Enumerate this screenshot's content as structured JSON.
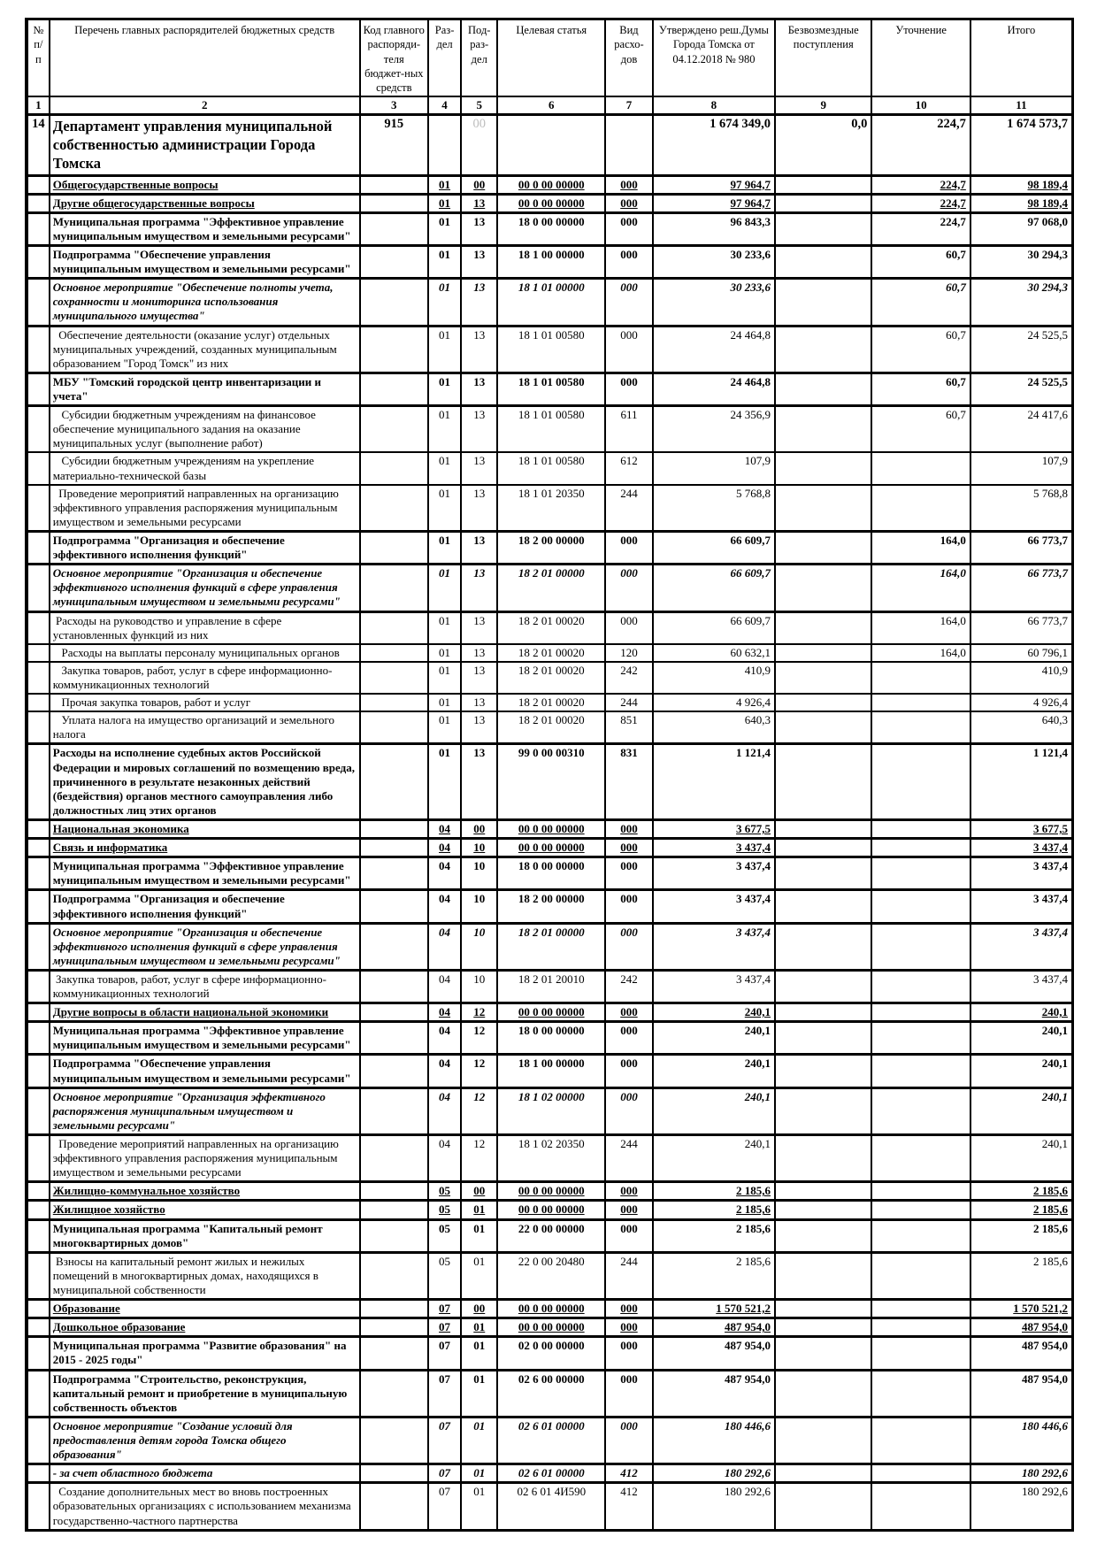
{
  "colors": {
    "accent_red": "#d40000",
    "accent_blue": "#0000cd",
    "ghost_gray": "#bdbdbd"
  },
  "header": {
    "columns": [
      {
        "label": "№ п/п",
        "num": "1"
      },
      {
        "label": "Перечень главных распорядителей бюджетных средств",
        "num": "2"
      },
      {
        "label": "Код главного распоряди-теля бюджет-ных средств",
        "num": "3"
      },
      {
        "label": "Раз-дел",
        "num": "4"
      },
      {
        "label": "Под-раз-дел",
        "num": "5"
      },
      {
        "label": "Целевая статья",
        "num": "6"
      },
      {
        "label": "Вид расхо-дов",
        "num": "7"
      },
      {
        "label": "Утверждено реш.Думы Города Томска от 04.12.2018 № 980",
        "num": "8"
      },
      {
        "label": "Безвозмездные поступления",
        "num": "9"
      },
      {
        "label": "Уточнение",
        "num": "10"
      },
      {
        "label": "Итого",
        "num": "11"
      }
    ]
  },
  "rows": [
    {
      "style": "red",
      "num": "14",
      "name": "Департамент управления муниципальной собственностью администрации Города Томска",
      "code": "915",
      "razdel": "",
      "podrazdel": "",
      "ghost": "00",
      "target": "",
      "vid": "",
      "approved": "1 674 349,0",
      "gratuitous": "0,0",
      "refinement": "224,7",
      "total": "1 674 573,7"
    },
    {
      "style": "blue",
      "num": "",
      "name": "Общегосударственные вопросы",
      "code": "",
      "razdel": "01",
      "podrazdel": "00",
      "ghost": "",
      "target": "00 0 00 00000",
      "vid": "000",
      "approved": "97 964,7",
      "gratuitous": "",
      "refinement": "224,7",
      "total": "98 189,4"
    },
    {
      "style": "blue",
      "num": "",
      "name": "Другие общегосударственные вопросы",
      "code": "",
      "razdel": "01",
      "podrazdel": "13",
      "ghost": "",
      "target": "00 0 00 00000",
      "vid": "000",
      "approved": "97 964,7",
      "gratuitous": "",
      "refinement": "224,7",
      "total": "98 189,4"
    },
    {
      "style": "bold",
      "num": "",
      "name": "Муниципальная программа \"Эффективное управление муниципальным имуществом и земельными ресурсами\"",
      "code": "",
      "razdel": "01",
      "podrazdel": "13",
      "ghost": "",
      "target": "18 0 00 00000",
      "vid": "000",
      "approved": "96 843,3",
      "gratuitous": "",
      "refinement": "224,7",
      "total": "97 068,0"
    },
    {
      "style": "bold",
      "num": "",
      "name": "Подпрограмма \"Обеспечение управления муниципальным имуществом и земельными ресурсами\"",
      "code": "",
      "razdel": "01",
      "podrazdel": "13",
      "ghost": "",
      "target": "18 1 00 00000",
      "vid": "000",
      "approved": "30 233,6",
      "gratuitous": "",
      "refinement": "60,7",
      "total": "30 294,3"
    },
    {
      "style": "bi",
      "num": "",
      "name": "Основное мероприятие \"Обеспечение полноты учета, сохранности и мониторинга использования муниципального имущества\"",
      "code": "",
      "razdel": "01",
      "podrazdel": "13",
      "ghost": "",
      "target": "18 1 01 00000",
      "vid": "000",
      "approved": "30 233,6",
      "gratuitous": "",
      "refinement": "60,7",
      "total": "30 294,3"
    },
    {
      "style": "normal",
      "num": "",
      "name": "  Обеспечение деятельности (оказание услуг) отдельных муниципальных учреждений, созданных муниципальным образованием \"Город Томск\" из них",
      "code": "",
      "razdel": "01",
      "podrazdel": "13",
      "ghost": "",
      "target": "18 1 01 00580",
      "vid": "000",
      "approved": "24 464,8",
      "gratuitous": "",
      "refinement": "60,7",
      "total": "24 525,5"
    },
    {
      "style": "bold",
      "num": "",
      "name": "МБУ \"Томский городской центр инвентаризации и учета\"",
      "code": "",
      "razdel": "01",
      "podrazdel": "13",
      "ghost": "",
      "target": "18 1 01 00580",
      "vid": "000",
      "approved": "24 464,8",
      "gratuitous": "",
      "refinement": "60,7",
      "total": "24 525,5"
    },
    {
      "style": "normal",
      "num": "",
      "name": "   Субсидии бюджетным учреждениям на финансовое обеспечение муниципального задания на оказание муниципальных услуг (выполнение работ)",
      "code": "",
      "razdel": "01",
      "podrazdel": "13",
      "ghost": "",
      "target": "18 1 01 00580",
      "vid": "611",
      "approved": "24 356,9",
      "gratuitous": "",
      "refinement": "60,7",
      "total": "24 417,6"
    },
    {
      "style": "normal",
      "num": "",
      "name": "   Субсидии бюджетным учреждениям на укрепление материально-технической базы",
      "code": "",
      "razdel": "01",
      "podrazdel": "13",
      "ghost": "",
      "target": "18 1 01 00580",
      "vid": "612",
      "approved": "107,9",
      "gratuitous": "",
      "refinement": "",
      "total": "107,9"
    },
    {
      "style": "normal",
      "num": "",
      "name": "  Проведение мероприятий направленных на организацию эффективного управления распоряжения муниципальным имуществом и земельными ресурсами",
      "code": "",
      "razdel": "01",
      "podrazdel": "13",
      "ghost": "",
      "target": "18 1 01 20350",
      "vid": "244",
      "approved": "5 768,8",
      "gratuitous": "",
      "refinement": "",
      "total": "5 768,8"
    },
    {
      "style": "bold",
      "num": "",
      "name": "Подпрограмма \"Организация и обеспечение эффективного исполнения функций\"",
      "code": "",
      "razdel": "01",
      "podrazdel": "13",
      "ghost": "",
      "target": "18 2 00 00000",
      "vid": "000",
      "approved": "66 609,7",
      "gratuitous": "",
      "refinement": "164,0",
      "total": "66 773,7"
    },
    {
      "style": "bi",
      "num": "",
      "name": "Основное мероприятие \"Организация и обеспечение эффективного исполнения функций в сфере управления муниципальным имуществом и земельными ресурсами\"",
      "code": "",
      "razdel": "01",
      "podrazdel": "13",
      "ghost": "",
      "target": "18 2 01 00000",
      "vid": "000",
      "approved": "66 609,7",
      "gratuitous": "",
      "refinement": "164,0",
      "total": "66 773,7"
    },
    {
      "style": "normal",
      "num": "",
      "name": " Расходы на руководство и управление в сфере установленных функций из них",
      "code": "",
      "razdel": "01",
      "podrazdel": "13",
      "ghost": "",
      "target": "18 2 01 00020",
      "vid": "000",
      "approved": "66 609,7",
      "gratuitous": "",
      "refinement": "164,0",
      "total": "66 773,7"
    },
    {
      "style": "normal",
      "num": "",
      "name": "   Расходы на выплаты персоналу муниципальных органов",
      "code": "",
      "razdel": "01",
      "podrazdel": "13",
      "ghost": "",
      "target": "18 2 01 00020",
      "vid": "120",
      "approved": "60 632,1",
      "gratuitous": "",
      "refinement": "164,0",
      "total": "60 796,1"
    },
    {
      "style": "normal",
      "num": "",
      "name": "   Закупка товаров, работ, услуг в сфере информационно-коммуникационных технологий",
      "code": "",
      "razdel": "01",
      "podrazdel": "13",
      "ghost": "",
      "target": "18 2 01 00020",
      "vid": "242",
      "approved": "410,9",
      "gratuitous": "",
      "refinement": "",
      "total": "410,9"
    },
    {
      "style": "normal",
      "num": "",
      "name": "   Прочая закупка товаров, работ и услуг",
      "code": "",
      "razdel": "01",
      "podrazdel": "13",
      "ghost": "",
      "target": "18 2 01 00020",
      "vid": "244",
      "approved": "4 926,4",
      "gratuitous": "",
      "refinement": "",
      "total": "4 926,4"
    },
    {
      "style": "normal",
      "num": "",
      "name": "   Уплата налога на имущество организаций и земельного налога",
      "code": "",
      "razdel": "01",
      "podrazdel": "13",
      "ghost": "",
      "target": "18 2 01 00020",
      "vid": "851",
      "approved": "640,3",
      "gratuitous": "",
      "refinement": "",
      "total": "640,3"
    },
    {
      "style": "bold",
      "num": "",
      "name": "Расходы на исполнение судебных актов Российской Федерации и мировых соглашений по возмещению вреда, причиненного в результате незаконных действий (бездействия) органов местного самоуправления либо должностных лиц этих органов",
      "code": "",
      "razdel": "01",
      "podrazdel": "13",
      "ghost": "",
      "target": "99 0 00 00310",
      "vid": "831",
      "approved": "1 121,4",
      "gratuitous": "",
      "refinement": "",
      "total": "1 121,4"
    },
    {
      "style": "blue",
      "num": "",
      "name": "Национальная экономика",
      "code": "",
      "razdel": "04",
      "podrazdel": "00",
      "ghost": "",
      "target": "00 0 00 00000",
      "vid": "000",
      "approved": "3 677,5",
      "gratuitous": "",
      "refinement": "",
      "total": "3 677,5"
    },
    {
      "style": "blue",
      "num": "",
      "name": "Связь и информатика",
      "code": "",
      "razdel": "04",
      "podrazdel": "10",
      "ghost": "",
      "target": "00 0 00 00000",
      "vid": "000",
      "approved": "3 437,4",
      "gratuitous": "",
      "refinement": "",
      "total": "3 437,4"
    },
    {
      "style": "bold",
      "num": "",
      "name": "Муниципальная программа \"Эффективное управление муниципальным имуществом и земельными ресурсами\"",
      "code": "",
      "razdel": "04",
      "podrazdel": "10",
      "ghost": "",
      "target": "18 0 00 00000",
      "vid": "000",
      "approved": "3 437,4",
      "gratuitous": "",
      "refinement": "",
      "total": "3 437,4"
    },
    {
      "style": "bold",
      "num": "",
      "name": "Подпрограмма \"Организация и обеспечение эффективного исполнения функций\"",
      "code": "",
      "razdel": "04",
      "podrazdel": "10",
      "ghost": "",
      "target": "18 2 00 00000",
      "vid": "000",
      "approved": "3 437,4",
      "gratuitous": "",
      "refinement": "",
      "total": "3 437,4"
    },
    {
      "style": "bi",
      "num": "",
      "name": "Основное мероприятие \"Организация и обеспечение эффективного исполнения функций в сфере управления муниципальным имуществом и земельными ресурсами\"",
      "code": "",
      "razdel": "04",
      "podrazdel": "10",
      "ghost": "",
      "target": "18 2 01 00000",
      "vid": "000",
      "approved": "3 437,4",
      "gratuitous": "",
      "refinement": "",
      "total": "3 437,4"
    },
    {
      "style": "normal",
      "num": "",
      "name": " Закупка товаров, работ, услуг в сфере информационно-коммуникационных технологий",
      "code": "",
      "razdel": "04",
      "podrazdel": "10",
      "ghost": "",
      "target": "18 2 01 20010",
      "vid": "242",
      "approved": "3 437,4",
      "gratuitous": "",
      "refinement": "",
      "total": "3 437,4"
    },
    {
      "style": "blue",
      "num": "",
      "name": "Другие вопросы в области национальной экономики",
      "code": "",
      "razdel": "04",
      "podrazdel": "12",
      "ghost": "",
      "target": "00 0 00 00000",
      "vid": "000",
      "approved": "240,1",
      "gratuitous": "",
      "refinement": "",
      "total": "240,1"
    },
    {
      "style": "bold",
      "num": "",
      "name": "Муниципальная программа \"Эффективное управление муниципальным имуществом и земельными ресурсами\"",
      "code": "",
      "razdel": "04",
      "podrazdel": "12",
      "ghost": "",
      "target": "18 0 00 00000",
      "vid": "000",
      "approved": "240,1",
      "gratuitous": "",
      "refinement": "",
      "total": "240,1"
    },
    {
      "style": "bold",
      "num": "",
      "name": "Подпрограмма \"Обеспечение управления муниципальным имуществом и земельными ресурсами\"",
      "code": "",
      "razdel": "04",
      "podrazdel": "12",
      "ghost": "",
      "target": "18 1 00 00000",
      "vid": "000",
      "approved": "240,1",
      "gratuitous": "",
      "refinement": "",
      "total": "240,1"
    },
    {
      "style": "bi",
      "num": "",
      "name": "Основное мероприятие \"Организация эффективного распоряжения муниципальным имуществом и земельными ресурсами\"",
      "code": "",
      "razdel": "04",
      "podrazdel": "12",
      "ghost": "",
      "target": "18 1 02 00000",
      "vid": "000",
      "approved": "240,1",
      "gratuitous": "",
      "refinement": "",
      "total": "240,1"
    },
    {
      "style": "normal",
      "num": "",
      "name": "  Проведение мероприятий направленных на организацию эффективного управления распоряжения муниципальным имуществом и земельными ресурсами",
      "code": "",
      "razdel": "04",
      "podrazdel": "12",
      "ghost": "",
      "target": "18 1 02 20350",
      "vid": "244",
      "approved": "240,1",
      "gratuitous": "",
      "refinement": "",
      "total": "240,1"
    },
    {
      "style": "blue",
      "num": "",
      "name": "Жилищно-коммунальное хозяйство",
      "code": "",
      "razdel": "05",
      "podrazdel": "00",
      "ghost": "",
      "target": "00 0 00 00000",
      "vid": "000",
      "approved": "2 185,6",
      "gratuitous": "",
      "refinement": "",
      "total": "2 185,6"
    },
    {
      "style": "blue",
      "num": "",
      "name": "Жилищное хозяйство",
      "code": "",
      "razdel": "05",
      "podrazdel": "01",
      "ghost": "",
      "target": "00 0 00 00000",
      "vid": "000",
      "approved": "2 185,6",
      "gratuitous": "",
      "refinement": "",
      "total": "2 185,6"
    },
    {
      "style": "bold",
      "num": "",
      "name": "Муниципальная программа \"Капитальный ремонт многоквартирных домов\"",
      "code": "",
      "razdel": "05",
      "podrazdel": "01",
      "ghost": "",
      "target": "22 0 00 00000",
      "vid": "000",
      "approved": "2 185,6",
      "gratuitous": "",
      "refinement": "",
      "total": "2 185,6"
    },
    {
      "style": "normal",
      "num": "",
      "name": " Взносы на капитальный ремонт жилых и нежилых помещений в многоквартирных домах, находящихся в муниципальной собственности",
      "code": "",
      "razdel": "05",
      "podrazdel": "01",
      "ghost": "",
      "target": "22 0 00 20480",
      "vid": "244",
      "approved": "2 185,6",
      "gratuitous": "",
      "refinement": "",
      "total": "2 185,6"
    },
    {
      "style": "blue",
      "num": "",
      "name": "Образование",
      "code": "",
      "razdel": "07",
      "podrazdel": "00",
      "ghost": "",
      "target": "00 0 00 00000",
      "vid": "000",
      "approved": "1 570 521,2",
      "gratuitous": "",
      "refinement": "",
      "total": "1 570 521,2"
    },
    {
      "style": "blue",
      "num": "",
      "name": "Дошкольное образование",
      "code": "",
      "razdel": "07",
      "podrazdel": "01",
      "ghost": "",
      "target": "00 0 00 00000",
      "vid": "000",
      "approved": "487 954,0",
      "gratuitous": "",
      "refinement": "",
      "total": "487 954,0"
    },
    {
      "style": "bold",
      "num": "",
      "name": "Муниципальная программа \"Развитие образования\" на 2015 - 2025 годы\"",
      "code": "",
      "razdel": "07",
      "podrazdel": "01",
      "ghost": "",
      "target": "02 0 00 00000",
      "vid": "000",
      "approved": "487 954,0",
      "gratuitous": "",
      "refinement": "",
      "total": "487 954,0"
    },
    {
      "style": "bold",
      "num": "",
      "name": "Подпрограмма \"Строительство, реконструкция, капитальный ремонт и приобретение в муниципальную собственность объектов",
      "code": "",
      "razdel": "07",
      "podrazdel": "01",
      "ghost": "",
      "target": "02 6 00 00000",
      "vid": "000",
      "approved": "487 954,0",
      "gratuitous": "",
      "refinement": "",
      "total": "487 954,0"
    },
    {
      "style": "bi",
      "num": "",
      "name": "Основное мероприятие \"Создание условий для предоставления детям города Томска общего образования\"",
      "code": "",
      "razdel": "07",
      "podrazdel": "01",
      "ghost": "",
      "target": "02 6 01 00000",
      "vid": "000",
      "approved": "180 446,6",
      "gratuitous": "",
      "refinement": "",
      "total": "180 446,6"
    },
    {
      "style": "bi",
      "num": "",
      "name": "- за счет областного бюджета",
      "code": "",
      "razdel": "07",
      "podrazdel": "01",
      "ghost": "",
      "target": "02 6 01 00000",
      "vid": "412",
      "approved": "180 292,6",
      "gratuitous": "",
      "refinement": "",
      "total": "180 292,6"
    },
    {
      "style": "normal",
      "num": "",
      "name": "  Создание дополнительных мест во вновь построенных образовательных организациях с использованием механизма государственно-частного партнерства",
      "code": "",
      "razdel": "07",
      "podrazdel": "01",
      "ghost": "",
      "target": "02 6 01 4И590",
      "vid": "412",
      "approved": "180 292,6",
      "gratuitous": "",
      "refinement": "",
      "total": "180 292,6"
    }
  ]
}
